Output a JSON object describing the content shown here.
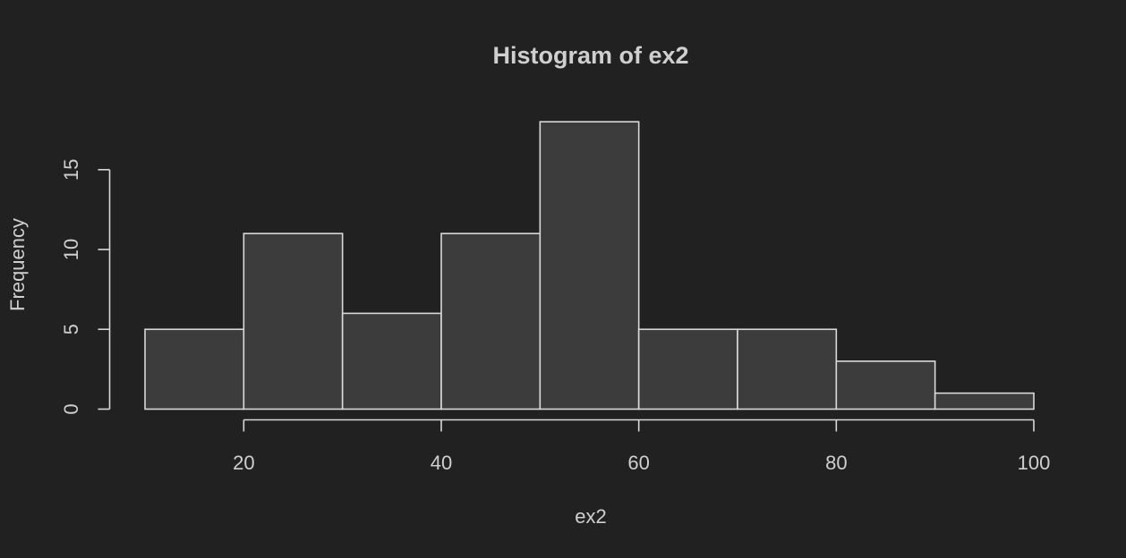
{
  "chart_data": {
    "type": "bar",
    "title": "Histogram of ex2",
    "xlabel": "ex2",
    "ylabel": "Frequency",
    "bins": [
      {
        "from": 10,
        "to": 20,
        "count": 5
      },
      {
        "from": 20,
        "to": 30,
        "count": 11
      },
      {
        "from": 30,
        "to": 40,
        "count": 6
      },
      {
        "from": 40,
        "to": 50,
        "count": 11
      },
      {
        "from": 50,
        "to": 60,
        "count": 18
      },
      {
        "from": 60,
        "to": 70,
        "count": 5
      },
      {
        "from": 70,
        "to": 80,
        "count": 5
      },
      {
        "from": 80,
        "to": 90,
        "count": 3
      },
      {
        "from": 90,
        "to": 100,
        "count": 1
      }
    ],
    "x_ticks": [
      "20",
      "40",
      "60",
      "80",
      "100"
    ],
    "y_ticks": [
      "0",
      "5",
      "10",
      "15"
    ],
    "xlim": [
      10,
      100
    ],
    "ylim": [
      0,
      18
    ],
    "grid": false,
    "legend": "none",
    "colors": {
      "background": "#212121",
      "bar_fill": "#3c3c3c",
      "bar_stroke": "#d9d9d9",
      "axis": "#d9d9d9",
      "text": "#cfcfcf"
    }
  }
}
